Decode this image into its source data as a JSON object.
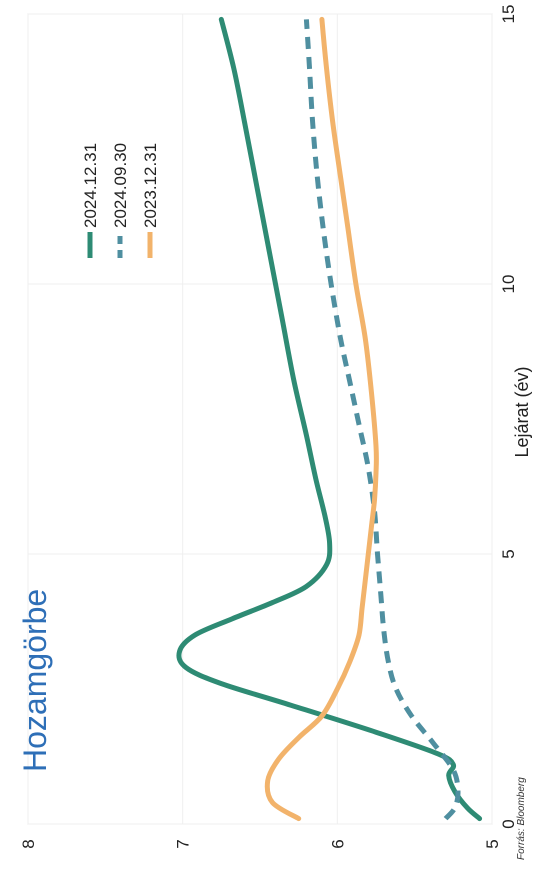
{
  "chart_data": {
    "type": "line",
    "title": "Hozamgörbe",
    "xlabel": "Lejárat (év)",
    "ylabel": "",
    "xlim": [
      0,
      15
    ],
    "ylim": [
      5,
      8
    ],
    "xticks": [
      "0",
      "5",
      "10",
      "15"
    ],
    "yticks": [
      "5",
      "6",
      "7",
      "8"
    ],
    "grid": true,
    "legend_position": "top-right",
    "source": "Forrás: Bloomberg",
    "series": [
      {
        "name": "2024.12.31",
        "color": "#2e8b74",
        "style": "solid",
        "x": [
          0.1,
          0.3,
          0.6,
          0.9,
          1.1,
          1.3,
          1.7,
          2.2,
          2.6,
          2.9,
          3.2,
          3.5,
          3.8,
          4.1,
          4.4,
          4.8,
          5.2,
          5.7,
          6.4,
          7.2,
          8.2,
          9.4,
          10.6,
          11.8,
          13.0,
          14.0,
          14.9
        ],
        "y": [
          5.08,
          5.16,
          5.24,
          5.28,
          5.25,
          5.35,
          5.75,
          6.3,
          6.75,
          6.98,
          7.02,
          6.92,
          6.68,
          6.42,
          6.2,
          6.07,
          6.05,
          6.08,
          6.14,
          6.2,
          6.28,
          6.36,
          6.44,
          6.52,
          6.6,
          6.67,
          6.75
        ]
      },
      {
        "name": "2024.09.30",
        "color": "#4f8fa0",
        "style": "dashed",
        "x": [
          0.1,
          0.3,
          0.6,
          1.0,
          1.5,
          2.0,
          2.5,
          3.0,
          3.6,
          4.3,
          5.0,
          5.8,
          6.6,
          7.4,
          8.2,
          9.0,
          10.0,
          11.0,
          12.0,
          13.0,
          14.0,
          14.9
        ],
        "y": [
          5.3,
          5.24,
          5.22,
          5.25,
          5.38,
          5.52,
          5.62,
          5.67,
          5.7,
          5.72,
          5.74,
          5.76,
          5.8,
          5.86,
          5.92,
          5.98,
          6.04,
          6.09,
          6.13,
          6.16,
          6.18,
          6.2
        ]
      },
      {
        "name": "2023.12.31",
        "color": "#f2b36b",
        "style": "solid",
        "x": [
          0.1,
          0.4,
          0.8,
          1.2,
          1.6,
          2.0,
          2.5,
          3.0,
          3.5,
          4.0,
          4.5,
          5.0,
          5.5,
          6.0,
          6.5,
          7.0,
          8.0,
          9.0,
          10.0,
          11.0,
          12.0,
          13.0,
          14.0,
          14.9
        ],
        "y": [
          6.25,
          6.42,
          6.45,
          6.38,
          6.25,
          6.1,
          6.0,
          5.92,
          5.86,
          5.84,
          5.82,
          5.8,
          5.78,
          5.76,
          5.75,
          5.75,
          5.78,
          5.82,
          5.88,
          5.93,
          5.98,
          6.03,
          6.07,
          6.1
        ]
      }
    ]
  }
}
